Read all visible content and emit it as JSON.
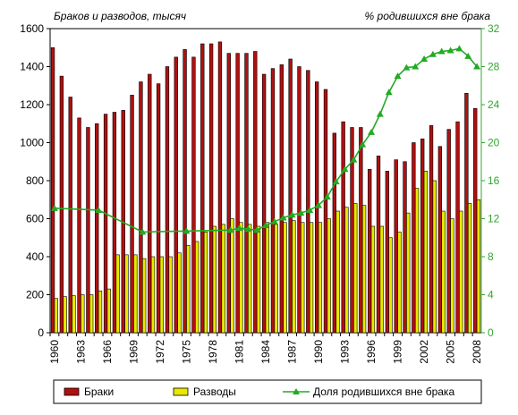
{
  "chart_data": {
    "type": "bar",
    "title": "",
    "ylabel_left": "Браков и разводов, тысяч",
    "ylabel_right": "% родившихся вне брака",
    "ylim_left": [
      0,
      1600
    ],
    "ylim_right": [
      0,
      32
    ],
    "yticks_left": [
      0,
      200,
      400,
      600,
      800,
      1000,
      1200,
      1400,
      1600
    ],
    "yticks_right": [
      0,
      4,
      8,
      12,
      16,
      20,
      24,
      28,
      32
    ],
    "x": [
      1960,
      1961,
      1962,
      1963,
      1964,
      1965,
      1966,
      1967,
      1968,
      1969,
      1970,
      1971,
      1972,
      1973,
      1974,
      1975,
      1976,
      1977,
      1978,
      1979,
      1980,
      1981,
      1982,
      1983,
      1984,
      1985,
      1986,
      1987,
      1988,
      1989,
      1990,
      1991,
      1992,
      1993,
      1994,
      1995,
      1996,
      1997,
      1998,
      1999,
      2000,
      2001,
      2002,
      2003,
      2004,
      2005,
      2006,
      2007,
      2008
    ],
    "x_tick_labels": [
      "1960",
      "1963",
      "1966",
      "1969",
      "1972",
      "1975",
      "1978",
      "1981",
      "1984",
      "1987",
      "1990",
      "1993",
      "1996",
      "1999",
      "2002",
      "2005",
      "2008"
    ],
    "series": [
      {
        "name": "Браки",
        "kind": "bar",
        "axis": "left",
        "color": "#b01010",
        "values": [
          1500,
          1350,
          1240,
          1130,
          1080,
          1100,
          1150,
          1160,
          1170,
          1250,
          1320,
          1360,
          1310,
          1400,
          1450,
          1490,
          1450,
          1520,
          1520,
          1530,
          1470,
          1470,
          1470,
          1480,
          1360,
          1390,
          1410,
          1440,
          1400,
          1380,
          1320,
          1280,
          1050,
          1110,
          1080,
          1080,
          860,
          930,
          850,
          910,
          900,
          1000,
          1020,
          1090,
          980,
          1070,
          1110,
          1260,
          1180
        ]
      },
      {
        "name": "Разводы",
        "kind": "bar",
        "axis": "left",
        "color": "#e8e800",
        "values": [
          180,
          190,
          195,
          200,
          200,
          220,
          230,
          410,
          410,
          410,
          390,
          400,
          400,
          400,
          420,
          460,
          480,
          530,
          560,
          570,
          600,
          580,
          570,
          560,
          580,
          570,
          580,
          590,
          580,
          580,
          580,
          600,
          640,
          660,
          680,
          670,
          560,
          560,
          500,
          530,
          630,
          760,
          850,
          800,
          640,
          600,
          640,
          680,
          700
        ]
      },
      {
        "name": "Доля родившихся вне брака",
        "kind": "line",
        "axis": "right",
        "color": "#22aa22",
        "x": [
          1960,
          1965,
          1970,
          1975,
          1980,
          1981,
          1982,
          1983,
          1984,
          1985,
          1986,
          1987,
          1988,
          1989,
          1990,
          1991,
          1992,
          1993,
          1994,
          1995,
          1996,
          1997,
          1998,
          1999,
          2000,
          2001,
          2002,
          2003,
          2004,
          2005,
          2006,
          2007
        ],
        "values": [
          13.1,
          12.9,
          10.6,
          10.7,
          10.8,
          11.0,
          10.9,
          10.8,
          11.3,
          11.7,
          12.1,
          12.4,
          12.6,
          12.9,
          13.4,
          14.3,
          15.9,
          17.2,
          18.2,
          19.8,
          21.1,
          23.0,
          25.3,
          27.0,
          27.9,
          28.0,
          28.8,
          29.3,
          29.6,
          29.7,
          29.9,
          29.1
        ]
      }
    ],
    "x_last_point": 2008,
    "x_last_value": 28.0,
    "legend_position": "bottom",
    "grid": false
  }
}
